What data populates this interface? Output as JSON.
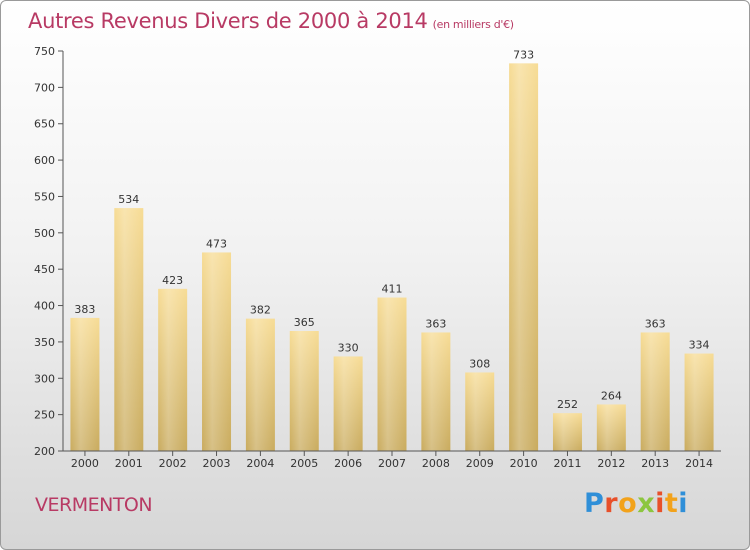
{
  "header": {
    "title": "Autres Revenus Divers de 2000 à 2014",
    "unit": "(en milliers d'€)"
  },
  "footer": {
    "city": "VERMENTON",
    "logo": {
      "letters": [
        "P",
        "r",
        "o",
        "x",
        "i",
        "t",
        "i"
      ],
      "colors": [
        "#2f8fd8",
        "#e8502a",
        "#f2a21b",
        "#8cc63f",
        "#e8502a",
        "#f2a21b",
        "#2f8fd8"
      ]
    }
  },
  "chart_data": {
    "type": "bar",
    "title": "Autres Revenus Divers de 2000 à 2014",
    "subtitle": "(en milliers d'€)",
    "categories": [
      "2000",
      "2001",
      "2002",
      "2003",
      "2004",
      "2005",
      "2006",
      "2007",
      "2008",
      "2009",
      "2010",
      "2011",
      "2012",
      "2013",
      "2014"
    ],
    "values": [
      383,
      534,
      423,
      473,
      382,
      365,
      330,
      411,
      363,
      308,
      733,
      252,
      264,
      363,
      334
    ],
    "ylim": [
      200,
      750
    ],
    "yticks": [
      200,
      250,
      300,
      350,
      400,
      450,
      500,
      550,
      600,
      650,
      700,
      750
    ],
    "grid": false,
    "legend": "none",
    "bar_color": "#e8c97a"
  }
}
